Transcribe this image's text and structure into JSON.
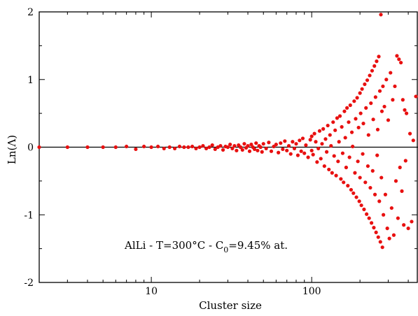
{
  "chart_data": {
    "type": "scatter",
    "title": "",
    "xlabel": "Cluster size",
    "ylabel": "Ln(Λ)",
    "x_scale": "log",
    "xlim": [
      2,
      460
    ],
    "ylim": [
      -2,
      2
    ],
    "x_ticks": [
      {
        "value": 10,
        "label": "10"
      },
      {
        "value": 100,
        "label": "100"
      }
    ],
    "y_ticks": [
      {
        "value": 2,
        "label": "2"
      },
      {
        "value": 1,
        "label": "1"
      },
      {
        "value": 0,
        "label": "0"
      },
      {
        "value": -1,
        "label": "-1"
      },
      {
        "value": -2,
        "label": "-2"
      }
    ],
    "reference_line": {
      "y": 0,
      "color": "#000000"
    },
    "grid": false,
    "legend": "none",
    "point_color": "#e81010",
    "annotation": {
      "prefix": "AlLi - T=300°C - C",
      "subscript": "0",
      "suffix": "=9.45% at."
    },
    "points": [
      [
        2,
        0.0
      ],
      [
        3,
        0.0
      ],
      [
        4,
        0.0
      ],
      [
        5,
        0.0
      ],
      [
        6,
        0.0
      ],
      [
        7,
        0.01
      ],
      [
        8,
        -0.03
      ],
      [
        9,
        0.01
      ],
      [
        10,
        0.0
      ],
      [
        11,
        0.01
      ],
      [
        12,
        -0.02
      ],
      [
        13,
        0.0
      ],
      [
        14,
        -0.02
      ],
      [
        15,
        0.01
      ],
      [
        16,
        0.0
      ],
      [
        17,
        0.0
      ],
      [
        18,
        0.01
      ],
      [
        19,
        -0.02
      ],
      [
        20,
        0.0
      ],
      [
        21,
        0.02
      ],
      [
        22,
        -0.02
      ],
      [
        23,
        0.0
      ],
      [
        24,
        0.03
      ],
      [
        25,
        -0.03
      ],
      [
        26,
        0.0
      ],
      [
        27,
        0.02
      ],
      [
        28,
        -0.04
      ],
      [
        29,
        0.01
      ],
      [
        30,
        0.0
      ],
      [
        31,
        0.04
      ],
      [
        32,
        -0.02
      ],
      [
        33,
        0.02
      ],
      [
        34,
        -0.05
      ],
      [
        35,
        0.03
      ],
      [
        36,
        0.0
      ],
      [
        37,
        -0.04
      ],
      [
        38,
        0.05
      ],
      [
        39,
        -0.01
      ],
      [
        40,
        0.02
      ],
      [
        41,
        -0.06
      ],
      [
        42,
        0.04
      ],
      [
        43,
        0.0
      ],
      [
        44,
        -0.03
      ],
      [
        45,
        0.06
      ],
      [
        46,
        -0.05
      ],
      [
        47,
        0.02
      ],
      [
        48,
        0.0
      ],
      [
        49,
        -0.07
      ],
      [
        50,
        0.05
      ],
      [
        52,
        -0.02
      ],
      [
        54,
        0.07
      ],
      [
        56,
        -0.06
      ],
      [
        58,
        0.01
      ],
      [
        60,
        0.04
      ],
      [
        62,
        -0.08
      ],
      [
        64,
        0.06
      ],
      [
        66,
        -0.03
      ],
      [
        68,
        0.09
      ],
      [
        70,
        -0.05
      ],
      [
        72,
        0.02
      ],
      [
        74,
        -0.1
      ],
      [
        76,
        0.08
      ],
      [
        78,
        -0.02
      ],
      [
        80,
        0.05
      ],
      [
        82,
        -0.12
      ],
      [
        84,
        0.1
      ],
      [
        86,
        -0.06
      ],
      [
        88,
        0.13
      ],
      [
        90,
        -0.09
      ],
      [
        92,
        0.03
      ],
      [
        95,
        -0.15
      ],
      [
        98,
        0.11
      ],
      [
        100,
        -0.05
      ],
      [
        100,
        0.16
      ],
      [
        102,
        -0.11
      ],
      [
        104,
        0.2
      ],
      [
        106,
        0.08
      ],
      [
        108,
        -0.22
      ],
      [
        110,
        -0.02
      ],
      [
        112,
        0.24
      ],
      [
        114,
        -0.17
      ],
      [
        116,
        0.05
      ],
      [
        118,
        0.27
      ],
      [
        120,
        -0.28
      ],
      [
        122,
        0.12
      ],
      [
        124,
        -0.07
      ],
      [
        126,
        0.32
      ],
      [
        128,
        -0.33
      ],
      [
        130,
        0.18
      ],
      [
        132,
        0.02
      ],
      [
        134,
        -0.38
      ],
      [
        136,
        0.37
      ],
      [
        138,
        -0.13
      ],
      [
        140,
        0.25
      ],
      [
        142,
        -0.42
      ],
      [
        144,
        0.43
      ],
      [
        146,
        -0.21
      ],
      [
        148,
        0.08
      ],
      [
        150,
        0.46
      ],
      [
        152,
        -0.47
      ],
      [
        154,
        0.3
      ],
      [
        156,
        -0.09
      ],
      [
        158,
        -0.52
      ],
      [
        160,
        0.53
      ],
      [
        162,
        0.14
      ],
      [
        164,
        -0.3
      ],
      [
        166,
        0.58
      ],
      [
        168,
        -0.57
      ],
      [
        170,
        0.37
      ],
      [
        172,
        -0.15
      ],
      [
        174,
        0.62
      ],
      [
        176,
        -0.63
      ],
      [
        178,
        0.22
      ],
      [
        180,
        0.01
      ],
      [
        182,
        -0.68
      ],
      [
        184,
        0.68
      ],
      [
        186,
        -0.38
      ],
      [
        188,
        0.42
      ],
      [
        190,
        -0.74
      ],
      [
        192,
        0.73
      ],
      [
        194,
        -0.21
      ],
      [
        196,
        0.29
      ],
      [
        198,
        -0.8
      ],
      [
        200,
        0.8
      ],
      [
        200,
        -0.45
      ],
      [
        202,
        0.5
      ],
      [
        204,
        -0.86
      ],
      [
        206,
        0.86
      ],
      [
        208,
        -0.1
      ],
      [
        210,
        0.35
      ],
      [
        212,
        -0.92
      ],
      [
        214,
        0.93
      ],
      [
        216,
        -0.52
      ],
      [
        218,
        0.58
      ],
      [
        220,
        -0.99
      ],
      [
        222,
        0.99
      ],
      [
        224,
        -0.28
      ],
      [
        226,
        0.18
      ],
      [
        228,
        -1.05
      ],
      [
        230,
        1.06
      ],
      [
        232,
        -0.6
      ],
      [
        234,
        0.65
      ],
      [
        236,
        -1.12
      ],
      [
        238,
        1.13
      ],
      [
        240,
        -0.35
      ],
      [
        242,
        0.41
      ],
      [
        244,
        -1.19
      ],
      [
        246,
        1.2
      ],
      [
        248,
        -0.7
      ],
      [
        250,
        0.74
      ],
      [
        252,
        -1.26
      ],
      [
        254,
        1.27
      ],
      [
        256,
        -0.12
      ],
      [
        258,
        0.26
      ],
      [
        260,
        -1.33
      ],
      [
        262,
        1.34
      ],
      [
        264,
        -0.8
      ],
      [
        266,
        0.83
      ],
      [
        268,
        -1.4
      ],
      [
        270,
        1.96
      ],
      [
        272,
        -0.45
      ],
      [
        274,
        0.53
      ],
      [
        276,
        -1.48
      ],
      [
        278,
        0.9
      ],
      [
        280,
        -1.0
      ],
      [
        284,
        0.6
      ],
      [
        288,
        -0.7
      ],
      [
        292,
        1.0
      ],
      [
        296,
        -1.2
      ],
      [
        300,
        0.4
      ],
      [
        305,
        -1.35
      ],
      [
        310,
        1.1
      ],
      [
        315,
        -0.9
      ],
      [
        320,
        0.7
      ],
      [
        325,
        -1.3
      ],
      [
        330,
        0.9
      ],
      [
        335,
        -0.5
      ],
      [
        340,
        1.35
      ],
      [
        345,
        -1.05
      ],
      [
        350,
        1.3
      ],
      [
        355,
        -0.3
      ],
      [
        360,
        1.25
      ],
      [
        365,
        -0.65
      ],
      [
        370,
        0.7
      ],
      [
        375,
        -1.15
      ],
      [
        380,
        0.55
      ],
      [
        385,
        -0.2
      ],
      [
        390,
        0.5
      ],
      [
        400,
        -1.2
      ],
      [
        410,
        0.2
      ],
      [
        420,
        -1.1
      ],
      [
        430,
        0.1
      ],
      [
        450,
        0.75
      ]
    ]
  }
}
